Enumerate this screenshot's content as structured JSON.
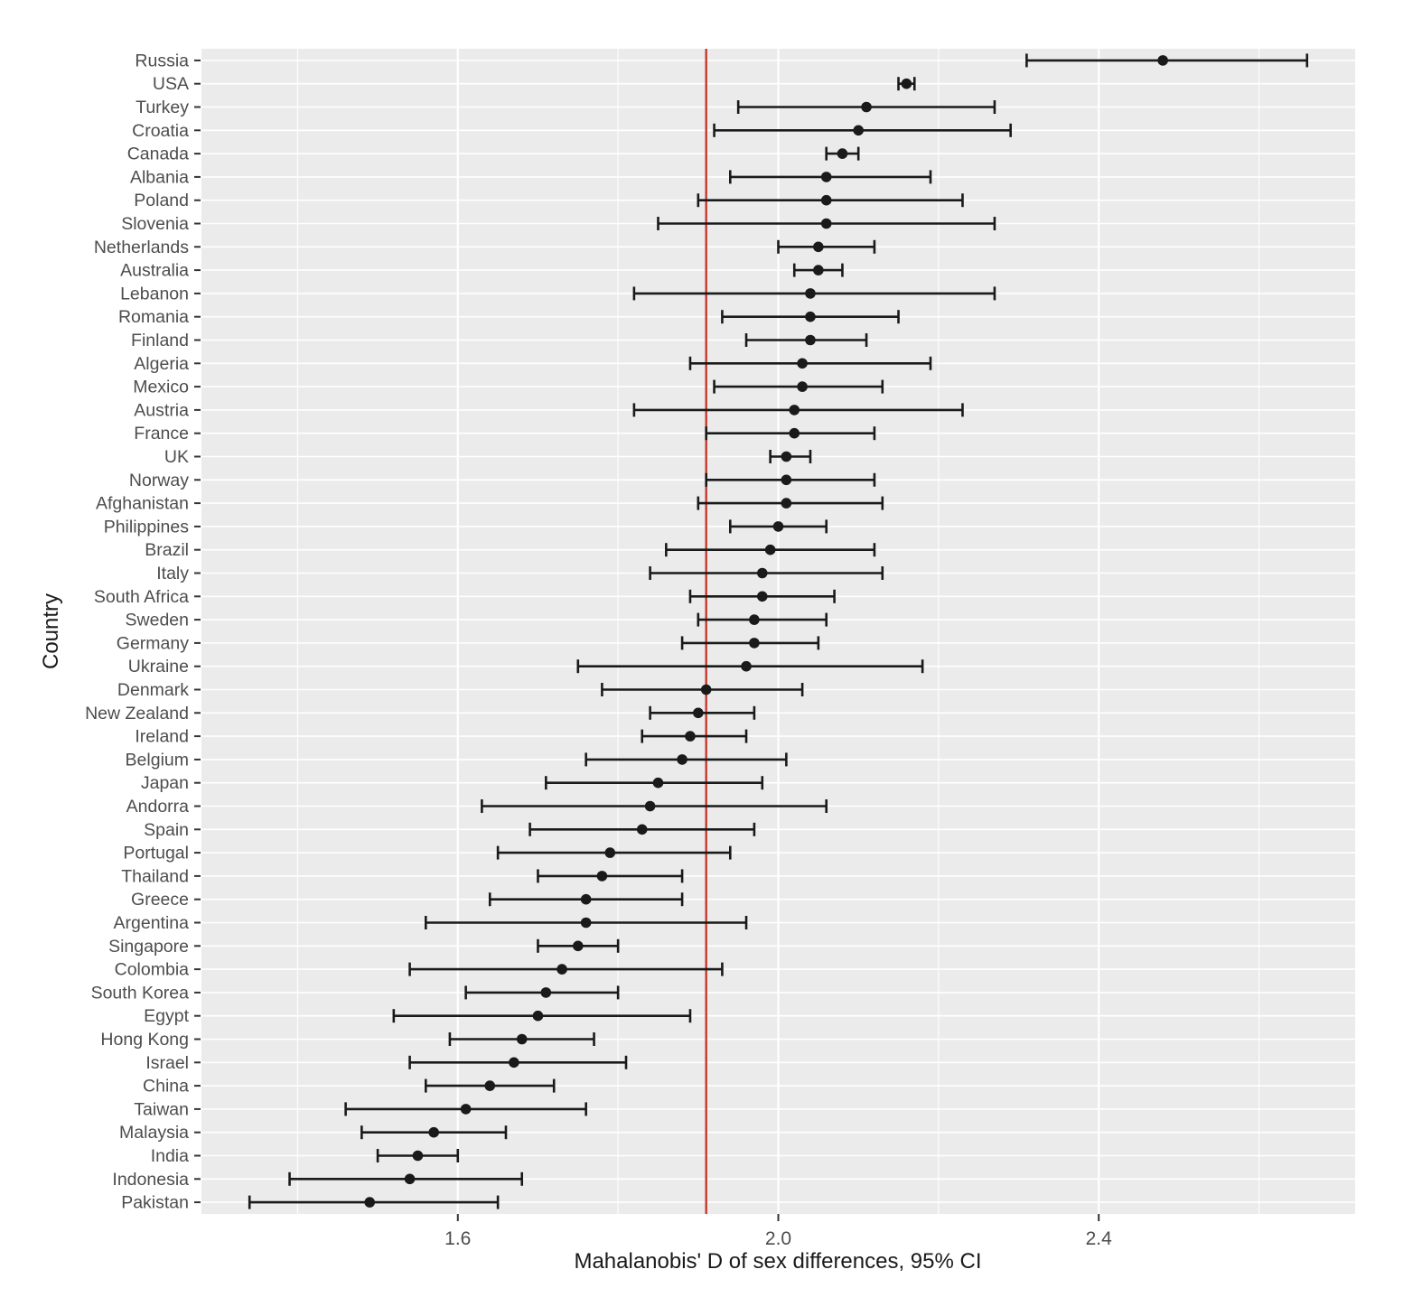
{
  "chart_data": {
    "type": "scatter",
    "variant": "horizontal forest plot, point estimates with 95% CI error bars",
    "title": "",
    "xlabel": "Mahalanobis' D of sex differences, 95% CI",
    "ylabel": "Country",
    "xlim": [
      1.28,
      2.72
    ],
    "x_major_ticks": [
      1.6,
      2.0,
      2.4
    ],
    "x_tick_labels": [
      "1.6",
      "2.0",
      "2.4"
    ],
    "x_minor_gridlines": [
      1.4,
      1.8,
      2.2,
      2.6
    ],
    "grid": "on",
    "legend": "none",
    "panel_background": "#EBEBEB",
    "gridline_color": "#FFFFFF",
    "point_color": "#1A1A1A",
    "axis_text_color": "#4D4D4D",
    "axis_title_color": "#1A1A1A",
    "reference_line": {
      "orientation": "vertical",
      "x": 1.91,
      "color": "#C7392B"
    },
    "points": [
      {
        "country": "Russia",
        "d": 2.48,
        "ci_low": 2.31,
        "ci_high": 2.66
      },
      {
        "country": "USA",
        "d": 2.16,
        "ci_low": 2.15,
        "ci_high": 2.17
      },
      {
        "country": "Turkey",
        "d": 2.11,
        "ci_low": 1.95,
        "ci_high": 2.27
      },
      {
        "country": "Croatia",
        "d": 2.1,
        "ci_low": 1.92,
        "ci_high": 2.29
      },
      {
        "country": "Canada",
        "d": 2.08,
        "ci_low": 2.06,
        "ci_high": 2.1
      },
      {
        "country": "Albania",
        "d": 2.06,
        "ci_low": 1.94,
        "ci_high": 2.19
      },
      {
        "country": "Poland",
        "d": 2.06,
        "ci_low": 1.9,
        "ci_high": 2.23
      },
      {
        "country": "Slovenia",
        "d": 2.06,
        "ci_low": 1.85,
        "ci_high": 2.27
      },
      {
        "country": "Netherlands",
        "d": 2.05,
        "ci_low": 2.0,
        "ci_high": 2.12
      },
      {
        "country": "Australia",
        "d": 2.05,
        "ci_low": 2.02,
        "ci_high": 2.08
      },
      {
        "country": "Lebanon",
        "d": 2.04,
        "ci_low": 1.82,
        "ci_high": 2.27
      },
      {
        "country": "Romania",
        "d": 2.04,
        "ci_low": 1.93,
        "ci_high": 2.15
      },
      {
        "country": "Finland",
        "d": 2.04,
        "ci_low": 1.96,
        "ci_high": 2.11
      },
      {
        "country": "Algeria",
        "d": 2.03,
        "ci_low": 1.89,
        "ci_high": 2.19
      },
      {
        "country": "Mexico",
        "d": 2.03,
        "ci_low": 1.92,
        "ci_high": 2.13
      },
      {
        "country": "Austria",
        "d": 2.02,
        "ci_low": 1.82,
        "ci_high": 2.23
      },
      {
        "country": "France",
        "d": 2.02,
        "ci_low": 1.91,
        "ci_high": 2.12
      },
      {
        "country": "UK",
        "d": 2.01,
        "ci_low": 1.99,
        "ci_high": 2.04
      },
      {
        "country": "Norway",
        "d": 2.01,
        "ci_low": 1.91,
        "ci_high": 2.12
      },
      {
        "country": "Afghanistan",
        "d": 2.01,
        "ci_low": 1.9,
        "ci_high": 2.13
      },
      {
        "country": "Philippines",
        "d": 2.0,
        "ci_low": 1.94,
        "ci_high": 2.06
      },
      {
        "country": "Brazil",
        "d": 1.99,
        "ci_low": 1.86,
        "ci_high": 2.12
      },
      {
        "country": "Italy",
        "d": 1.98,
        "ci_low": 1.84,
        "ci_high": 2.13
      },
      {
        "country": "South Africa",
        "d": 1.98,
        "ci_low": 1.89,
        "ci_high": 2.07
      },
      {
        "country": "Sweden",
        "d": 1.97,
        "ci_low": 1.9,
        "ci_high": 2.06
      },
      {
        "country": "Germany",
        "d": 1.97,
        "ci_low": 1.88,
        "ci_high": 2.05
      },
      {
        "country": "Ukraine",
        "d": 1.96,
        "ci_low": 1.75,
        "ci_high": 2.18
      },
      {
        "country": "Denmark",
        "d": 1.91,
        "ci_low": 1.78,
        "ci_high": 2.03
      },
      {
        "country": "New Zealand",
        "d": 1.9,
        "ci_low": 1.84,
        "ci_high": 1.97
      },
      {
        "country": "Ireland",
        "d": 1.89,
        "ci_low": 1.83,
        "ci_high": 1.96
      },
      {
        "country": "Belgium",
        "d": 1.88,
        "ci_low": 1.76,
        "ci_high": 2.01
      },
      {
        "country": "Japan",
        "d": 1.85,
        "ci_low": 1.71,
        "ci_high": 1.98
      },
      {
        "country": "Andorra",
        "d": 1.84,
        "ci_low": 1.63,
        "ci_high": 2.06
      },
      {
        "country": "Spain",
        "d": 1.83,
        "ci_low": 1.69,
        "ci_high": 1.97
      },
      {
        "country": "Portugal",
        "d": 1.79,
        "ci_low": 1.65,
        "ci_high": 1.94
      },
      {
        "country": "Thailand",
        "d": 1.78,
        "ci_low": 1.7,
        "ci_high": 1.88
      },
      {
        "country": "Greece",
        "d": 1.76,
        "ci_low": 1.64,
        "ci_high": 1.88
      },
      {
        "country": "Argentina",
        "d": 1.76,
        "ci_low": 1.56,
        "ci_high": 1.96
      },
      {
        "country": "Singapore",
        "d": 1.75,
        "ci_low": 1.7,
        "ci_high": 1.8
      },
      {
        "country": "Colombia",
        "d": 1.73,
        "ci_low": 1.54,
        "ci_high": 1.93
      },
      {
        "country": "South Korea",
        "d": 1.71,
        "ci_low": 1.61,
        "ci_high": 1.8
      },
      {
        "country": "Egypt",
        "d": 1.7,
        "ci_low": 1.52,
        "ci_high": 1.89
      },
      {
        "country": "Hong Kong",
        "d": 1.68,
        "ci_low": 1.59,
        "ci_high": 1.77
      },
      {
        "country": "Israel",
        "d": 1.67,
        "ci_low": 1.54,
        "ci_high": 1.81
      },
      {
        "country": "China",
        "d": 1.64,
        "ci_low": 1.56,
        "ci_high": 1.72
      },
      {
        "country": "Taiwan",
        "d": 1.61,
        "ci_low": 1.46,
        "ci_high": 1.76
      },
      {
        "country": "Malaysia",
        "d": 1.57,
        "ci_low": 1.48,
        "ci_high": 1.66
      },
      {
        "country": "India",
        "d": 1.55,
        "ci_low": 1.5,
        "ci_high": 1.6
      },
      {
        "country": "Indonesia",
        "d": 1.54,
        "ci_low": 1.39,
        "ci_high": 1.68
      },
      {
        "country": "Pakistan",
        "d": 1.49,
        "ci_low": 1.34,
        "ci_high": 1.65
      }
    ]
  }
}
